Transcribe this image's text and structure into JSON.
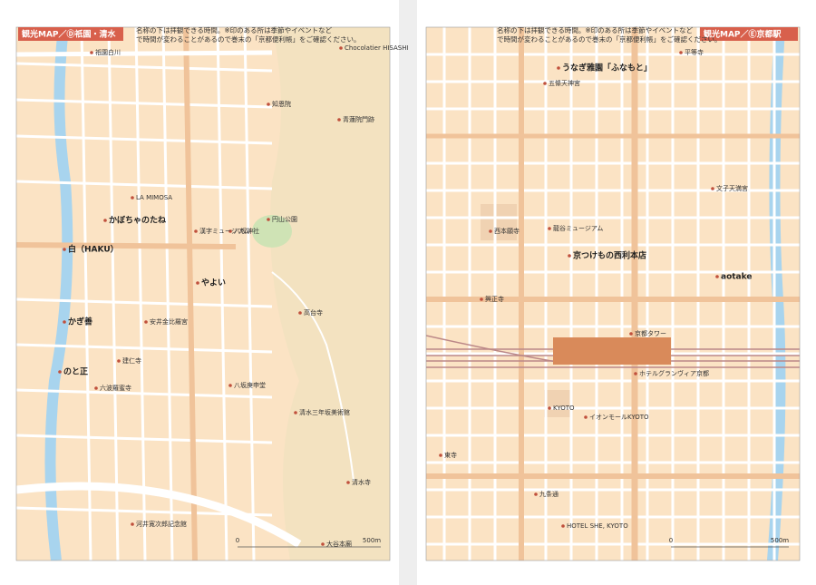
{
  "left_page": {
    "header": {
      "title": "観光MAP／Ⓓ祇園・清水"
    },
    "note": [
      "名称の下は拝観できる時間。※印のある所は季節やイベントなど",
      "で時間が変わることがあるので巻末の「京都便利帳」をご確認ください。"
    ],
    "labels": [
      "知恩院",
      "青蓮院門跡",
      "Chocolatier HISASHI",
      "祇園白川",
      "LA MIMOSA",
      "かぼちゃのたね",
      "白（HAKU）",
      "八坂神社",
      "円山公園",
      "漢字ミュージアム",
      "やよい",
      "かぎ善",
      "建仁寺",
      "高台寺",
      "安井金比羅宮",
      "のと正",
      "六波羅蜜寺",
      "八坂庚申堂",
      "清水三年坂美術館",
      "清水寺",
      "河井寛次郎記念館",
      "大谷本廟"
    ],
    "scale": {
      "start": "0",
      "end": "500m"
    }
  },
  "right_page": {
    "header": {
      "title": "観光MAP／Ⓔ京都駅"
    },
    "note": [
      "名称の下は拝観できる時間。※印のある所は季節やイベントなど",
      "で時間が変わることがあるので巻末の「京都便利帳」をご確認ください。"
    ],
    "labels": [
      "うなぎ雅園「ふなもと」",
      "五條天神宮",
      "平等寺",
      "文子天満宮",
      "西本願寺",
      "龍谷ミュージアム",
      "京つけもの西利本店",
      "興正寺",
      "aotake",
      "京都タワー",
      "ホテルグランヴィア京都",
      "KYOTO",
      "イオンモールKYOTO",
      "東寺",
      "九条通",
      "HOTEL SHE, KYOTO"
    ],
    "scale": {
      "start": "0",
      "end": "500m"
    }
  }
}
